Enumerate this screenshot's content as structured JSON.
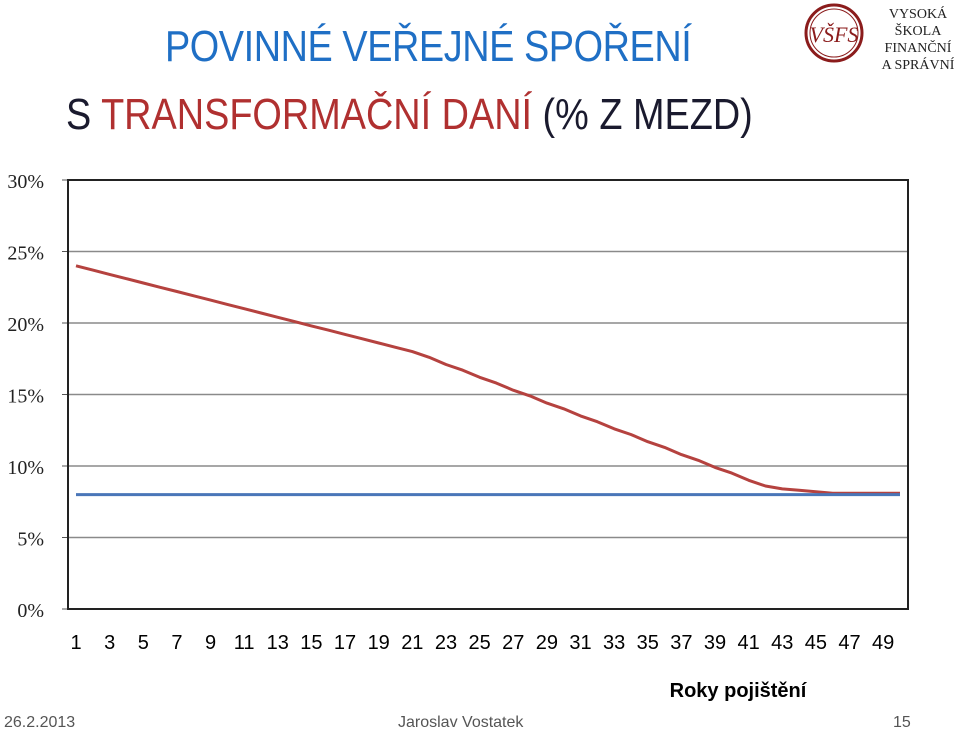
{
  "header": {
    "title_line1": "POVINNÉ VEŘEJNÉ SPOŘENÍ",
    "title_line2_dark1": "S ",
    "title_line2_red": "TRANSFORMAČNÍ DANÍ",
    "title_line2_dark2": " (% Z MEZD)",
    "logo_line1": "VYSOKÁ ŠKOLA",
    "logo_line2": "FINANČNÍ",
    "logo_line3": "A SPRÁVNÍ",
    "logo_mark": "VŠFS"
  },
  "footer": {
    "date": "26.2.2013",
    "author": "Jaroslav Vostatek",
    "page": "15"
  },
  "colors": {
    "title_blue": "#1f6fc5",
    "title_red": "#b03030",
    "series_red": "#b5423f",
    "series_blue": "#4a76b8"
  },
  "chart_data": {
    "type": "line",
    "xlabel": "Roky pojištění",
    "ylabel": "",
    "ylim": [
      0,
      30
    ],
    "y_ticks": [
      "0%",
      "5%",
      "10%",
      "15%",
      "20%",
      "25%",
      "30%"
    ],
    "x_tick_labels": [
      "1",
      "3",
      "5",
      "7",
      "9",
      "11",
      "13",
      "15",
      "17",
      "19",
      "21",
      "23",
      "25",
      "27",
      "29",
      "31",
      "33",
      "35",
      "37",
      "39",
      "41",
      "43",
      "45",
      "47",
      "49"
    ],
    "x": [
      1,
      2,
      3,
      4,
      5,
      6,
      7,
      8,
      9,
      10,
      11,
      12,
      13,
      14,
      15,
      16,
      17,
      18,
      19,
      20,
      21,
      22,
      23,
      24,
      25,
      26,
      27,
      28,
      29,
      30,
      31,
      32,
      33,
      34,
      35,
      36,
      37,
      38,
      39,
      40,
      41,
      42,
      43,
      44,
      45,
      46,
      47,
      48,
      49,
      50
    ],
    "grid": true,
    "series": [
      {
        "color": "#b5423f",
        "values": [
          24.0,
          23.7,
          23.4,
          23.1,
          22.8,
          22.5,
          22.2,
          21.9,
          21.6,
          21.3,
          21.0,
          20.7,
          20.4,
          20.1,
          19.8,
          19.5,
          19.2,
          18.9,
          18.6,
          18.3,
          18.0,
          17.6,
          17.1,
          16.7,
          16.2,
          15.8,
          15.3,
          14.9,
          14.4,
          14.0,
          13.5,
          13.1,
          12.6,
          12.2,
          11.7,
          11.3,
          10.8,
          10.4,
          9.9,
          9.5,
          9.0,
          8.6,
          8.4,
          8.3,
          8.2,
          8.1,
          8.1,
          8.1,
          8.1,
          8.1
        ]
      },
      {
        "color": "#4a76b8",
        "values": [
          8.0,
          8.0,
          8.0,
          8.0,
          8.0,
          8.0,
          8.0,
          8.0,
          8.0,
          8.0,
          8.0,
          8.0,
          8.0,
          8.0,
          8.0,
          8.0,
          8.0,
          8.0,
          8.0,
          8.0,
          8.0,
          8.0,
          8.0,
          8.0,
          8.0,
          8.0,
          8.0,
          8.0,
          8.0,
          8.0,
          8.0,
          8.0,
          8.0,
          8.0,
          8.0,
          8.0,
          8.0,
          8.0,
          8.0,
          8.0,
          8.0,
          8.0,
          8.0,
          8.0,
          8.0,
          8.0,
          8.0,
          8.0,
          8.0,
          8.0
        ]
      }
    ]
  }
}
